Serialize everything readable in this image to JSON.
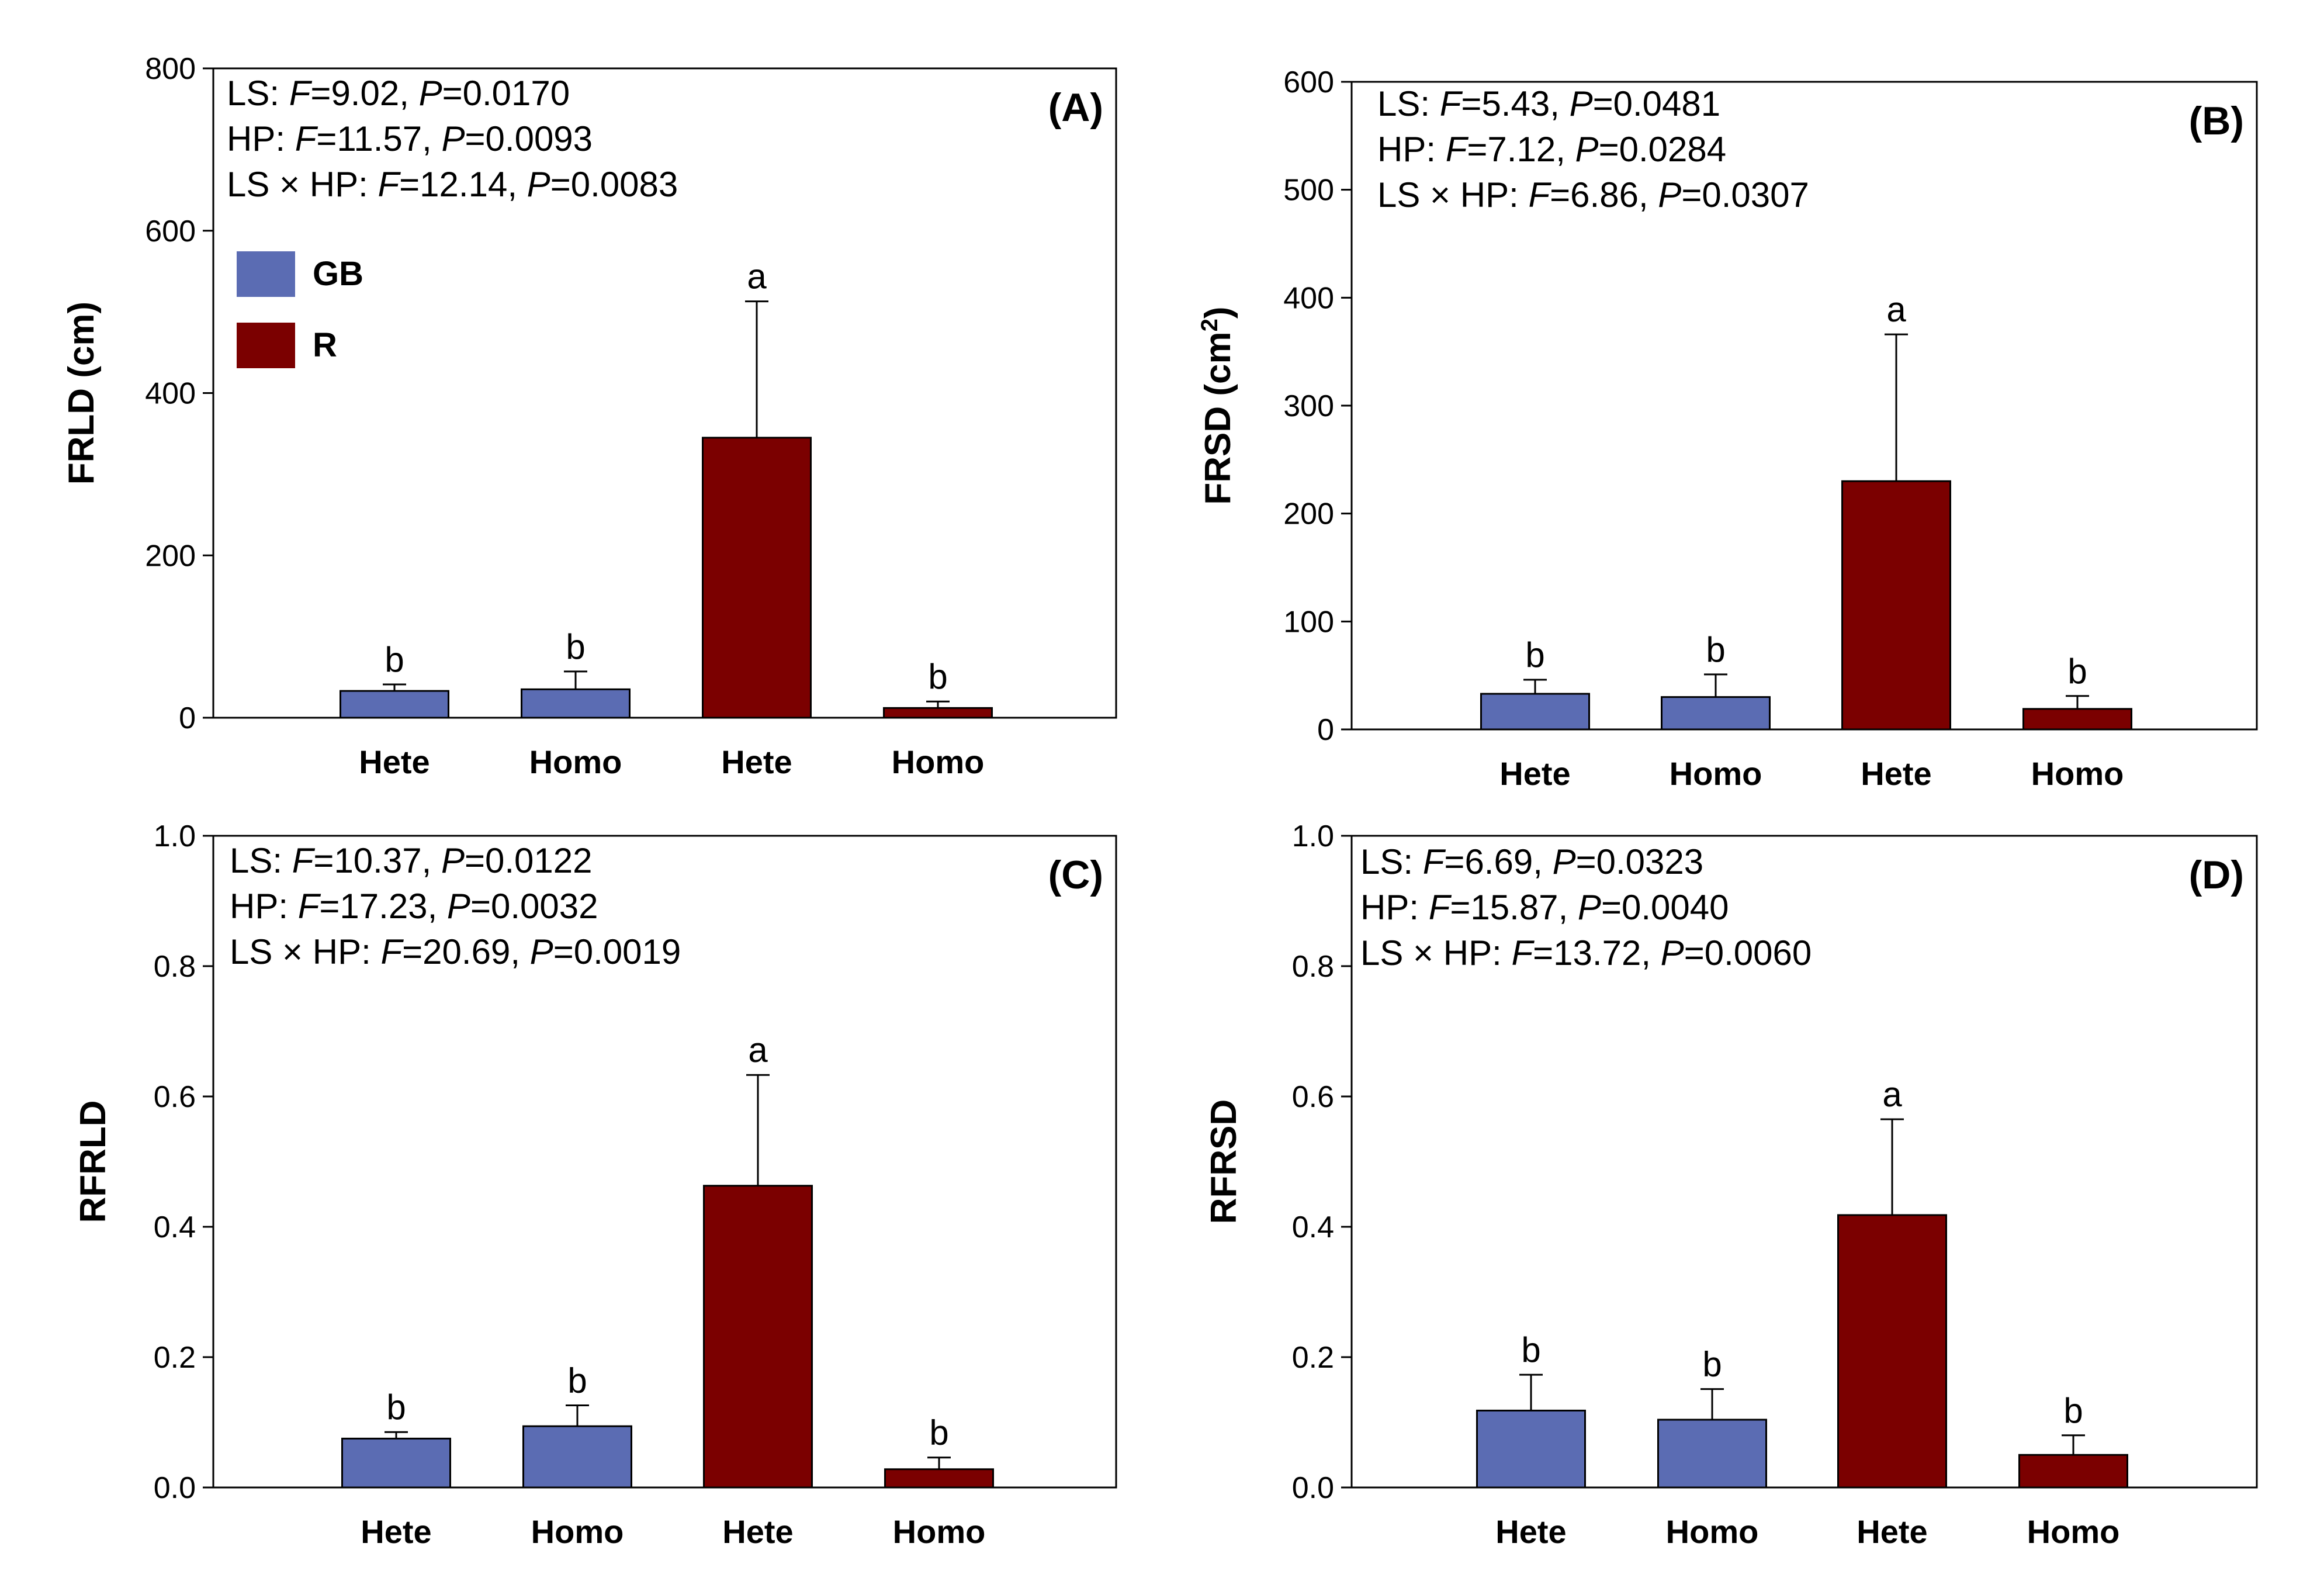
{
  "colors": {
    "GB": "#5b6cb3",
    "R": "#7b0000"
  },
  "legend": [
    {
      "key": "GB",
      "label": "GB"
    },
    {
      "key": "R",
      "label": "R"
    }
  ],
  "chart_data": [
    {
      "id": "A",
      "type": "bar",
      "panel_label": "(A)",
      "ylabel": "FRLD (cm)",
      "ylim": [
        0,
        800
      ],
      "yticks": [
        0,
        200,
        400,
        600,
        800
      ],
      "ytick_labels": [
        "0",
        "200",
        "400",
        "600",
        "800"
      ],
      "categories": [
        "Hete",
        "Homo",
        "Hete",
        "Homo"
      ],
      "groups": [
        "GB",
        "GB",
        "R",
        "R"
      ],
      "values": [
        33,
        35,
        345,
        12
      ],
      "errors": [
        8,
        22,
        168,
        8
      ],
      "letters": [
        "b",
        "b",
        "a",
        "b"
      ],
      "stats": [
        {
          "prefix": "LS: ",
          "f": "9.02",
          "p": "0.0170"
        },
        {
          "prefix": "HP: ",
          "f": "11.57",
          "p": "0.0093"
        },
        {
          "prefix": "LS × HP: ",
          "f": "12.14",
          "p": "0.0083"
        }
      ],
      "show_legend": true
    },
    {
      "id": "B",
      "type": "bar",
      "panel_label": "(B)",
      "ylabel": "FRSD (cm",
      "ylabel_sup": "2",
      "ylabel_close": ")",
      "ylim": [
        0,
        600
      ],
      "yticks": [
        0,
        100,
        200,
        300,
        400,
        500,
        600
      ],
      "ytick_labels": [
        "0",
        "100",
        "200",
        "300",
        "400",
        "500",
        "600"
      ],
      "categories": [
        "Hete",
        "Homo",
        "Hete",
        "Homo"
      ],
      "groups": [
        "GB",
        "GB",
        "R",
        "R"
      ],
      "values": [
        33,
        30,
        230,
        19
      ],
      "errors": [
        13,
        21,
        136,
        12
      ],
      "letters": [
        "b",
        "b",
        "a",
        "b"
      ],
      "stats": [
        {
          "prefix": "LS: ",
          "f": "5.43",
          "p": "0.0481"
        },
        {
          "prefix": "HP: ",
          "f": "7.12",
          "p": "0.0284"
        },
        {
          "prefix": "LS × HP: ",
          "f": "6.86",
          "p": "0.0307"
        }
      ],
      "show_legend": false
    },
    {
      "id": "C",
      "type": "bar",
      "panel_label": "(C)",
      "ylabel": "RFRLD",
      "ylim": [
        0,
        1.0
      ],
      "yticks": [
        0,
        0.2,
        0.4,
        0.6,
        0.8,
        1.0
      ],
      "ytick_labels": [
        "0.0",
        "0.2",
        "0.4",
        "0.6",
        "0.8",
        "1.0"
      ],
      "categories": [
        "Hete",
        "Homo",
        "Hete",
        "Homo"
      ],
      "groups": [
        "GB",
        "GB",
        "R",
        "R"
      ],
      "values": [
        0.075,
        0.094,
        0.463,
        0.028
      ],
      "errors": [
        0.01,
        0.032,
        0.17,
        0.018
      ],
      "letters": [
        "b",
        "b",
        "a",
        "b"
      ],
      "stats": [
        {
          "prefix": "LS: ",
          "f": "10.37",
          "p": "0.0122"
        },
        {
          "prefix": "HP: ",
          "f": "17.23",
          "p": "0.0032"
        },
        {
          "prefix": "LS × HP: ",
          "f": "20.69",
          "p": "0.0019"
        }
      ],
      "show_legend": false
    },
    {
      "id": "D",
      "type": "bar",
      "panel_label": "(D)",
      "ylabel": "RFRSD",
      "ylim": [
        0,
        1.0
      ],
      "yticks": [
        0,
        0.2,
        0.4,
        0.6,
        0.8,
        1.0
      ],
      "ytick_labels": [
        "0.0",
        "0.2",
        "0.4",
        "0.6",
        "0.8",
        "1.0"
      ],
      "categories": [
        "Hete",
        "Homo",
        "Hete",
        "Homo"
      ],
      "groups": [
        "GB",
        "GB",
        "R",
        "R"
      ],
      "values": [
        0.118,
        0.104,
        0.418,
        0.05
      ],
      "errors": [
        0.055,
        0.047,
        0.147,
        0.03
      ],
      "letters": [
        "b",
        "b",
        "a",
        "b"
      ],
      "stats": [
        {
          "prefix": "LS: ",
          "f": "6.69",
          "p": "0.0323"
        },
        {
          "prefix": "HP: ",
          "f": "15.87",
          "p": "0.0040"
        },
        {
          "prefix": "LS × HP: ",
          "f": "13.72",
          "p": "0.0060"
        }
      ],
      "show_legend": false
    }
  ]
}
